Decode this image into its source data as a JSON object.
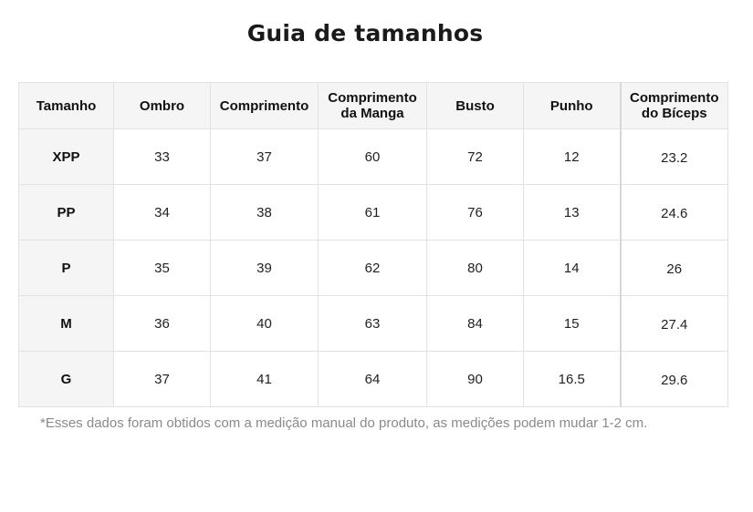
{
  "title": "Guia de tamanhos",
  "table": {
    "headers": {
      "size": "Tamanho",
      "shoulder": "Ombro",
      "length": "Comprimento",
      "sleeve_line1": "Comprimento",
      "sleeve_line2": "da Manga",
      "bust": "Busto",
      "cuff": "Punho",
      "biceps_line1": "Comprimento",
      "biceps_line2": "do Bíceps"
    },
    "rows": [
      {
        "size": "XPP",
        "shoulder": "33",
        "length": "37",
        "sleeve": "60",
        "bust": "72",
        "cuff": "12",
        "biceps": "23.2"
      },
      {
        "size": "PP",
        "shoulder": "34",
        "length": "38",
        "sleeve": "61",
        "bust": "76",
        "cuff": "13",
        "biceps": "24.6"
      },
      {
        "size": "P",
        "shoulder": "35",
        "length": "39",
        "sleeve": "62",
        "bust": "80",
        "cuff": "14",
        "biceps": "26"
      },
      {
        "size": "M",
        "shoulder": "36",
        "length": "40",
        "sleeve": "63",
        "bust": "84",
        "cuff": "15",
        "biceps": "27.4"
      },
      {
        "size": "G",
        "shoulder": "37",
        "length": "41",
        "sleeve": "64",
        "bust": "90",
        "cuff": "16.5",
        "biceps": "29.6"
      }
    ]
  },
  "footnote": "*Esses dados foram obtidos com a medição manual do produto, as medições podem mudar 1-2 cm."
}
